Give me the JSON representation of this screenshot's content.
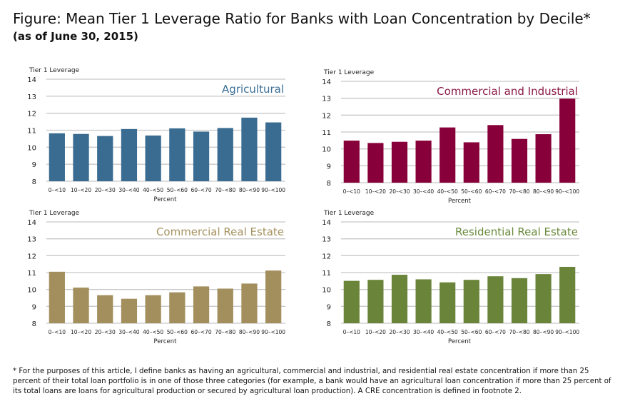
{
  "title": "Figure: Mean Tier 1 Leverage Ratio for Banks with Loan Concentration by Decile*",
  "subtitle": "(as of June 30, 2015)",
  "footnote": "* For the purposes of this article, I define banks as having an agricultural, commercial and industrial, and residential real estate concentration if more than 25 percent of their total loan portfolio is in one of those three categories (for example, a bank would have an agricultural loan concentration if more than 25 percent of its total loans are loans for agricultural production or secured by agricultural loan production). A CRE concentration is defined in footnote 2.",
  "chart_data": [
    {
      "type": "bar",
      "title": "Agricultural",
      "ylabel": "Tier 1 Leverage",
      "xlabel": "Percent",
      "ylim": [
        8,
        14
      ],
      "yticks": [
        8,
        9,
        10,
        11,
        12,
        13,
        14
      ],
      "grid": true,
      "color": "#3a6b90",
      "title_color": "#3b6f96",
      "categories": [
        "0–<10",
        "10–<20",
        "20–<30",
        "30–<40",
        "40–<50",
        "50–<60",
        "60–<70",
        "70–<80",
        "80–<90",
        "90–<100"
      ],
      "values": [
        10.82,
        10.78,
        10.66,
        11.07,
        10.69,
        11.11,
        10.92,
        11.13,
        11.74,
        11.46
      ]
    },
    {
      "type": "bar",
      "title": "Commercial and Industrial",
      "ylabel": "Tier 1 Leverage",
      "xlabel": "Percent",
      "ylim": [
        8,
        14
      ],
      "yticks": [
        8,
        9,
        10,
        11,
        12,
        13,
        14
      ],
      "grid": true,
      "color": "#87003a",
      "title_color": "#8a1a45",
      "categories": [
        "0–<10",
        "10–<20",
        "20–<30",
        "30–<40",
        "40–<50",
        "50–<60",
        "60–<70",
        "70–<80",
        "80–<90",
        "90–<100"
      ],
      "values": [
        10.49,
        10.35,
        10.42,
        10.49,
        11.27,
        10.39,
        11.41,
        10.59,
        10.87,
        12.97
      ]
    },
    {
      "type": "bar",
      "title": "Commercial Real Estate",
      "ylabel": "Tier 1 Leverage",
      "xlabel": "Percent",
      "ylim": [
        8,
        14
      ],
      "yticks": [
        8,
        9,
        10,
        11,
        12,
        13,
        14
      ],
      "grid": true,
      "color": "#a38f5e",
      "title_color": "#a6925f",
      "categories": [
        "0–<10",
        "10–<20",
        "20–<30",
        "30–<40",
        "40–<50",
        "50–<60",
        "60–<70",
        "70–<80",
        "80–<90",
        "90–<100"
      ],
      "values": [
        11.05,
        10.11,
        9.66,
        9.45,
        9.66,
        9.83,
        10.18,
        10.05,
        10.35,
        11.12
      ]
    },
    {
      "type": "bar",
      "title": "Residential Real Estate",
      "ylabel": "Tier 1 Leverage",
      "xlabel": "Percent",
      "ylim": [
        8,
        14
      ],
      "yticks": [
        8,
        9,
        10,
        11,
        12,
        13,
        14
      ],
      "grid": true,
      "color": "#6a843a",
      "title_color": "#6a8a3c",
      "categories": [
        "0–<10",
        "10–<20",
        "20–<30",
        "30–<40",
        "40–<50",
        "50–<60",
        "60–<70",
        "70–<80",
        "80–<90",
        "90–<100"
      ],
      "values": [
        10.51,
        10.57,
        10.87,
        10.6,
        10.42,
        10.57,
        10.78,
        10.67,
        10.91,
        11.34
      ]
    }
  ]
}
